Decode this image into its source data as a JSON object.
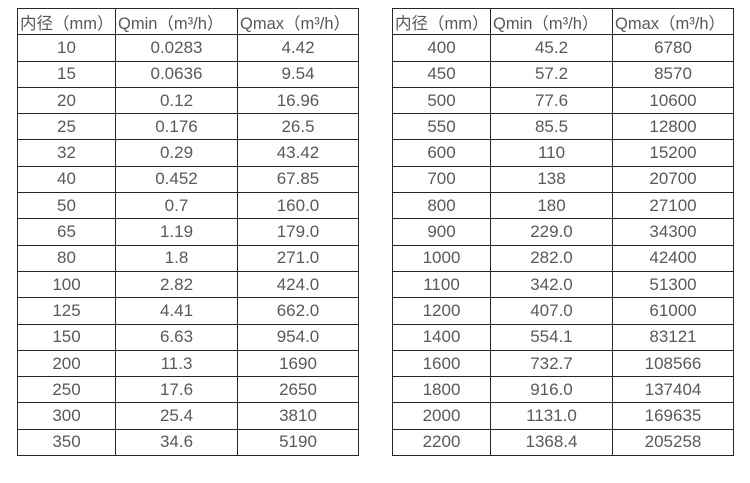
{
  "colors": {
    "background": "#ffffff",
    "border": "#262626",
    "text": "#595959"
  },
  "tables": [
    {
      "name": "small-diameter-flow-table",
      "headers": [
        "内径（mm）",
        "Qmin（m³/h）",
        "Qmax（m³/h）"
      ],
      "rows": [
        [
          "10",
          "0.0283",
          "4.42"
        ],
        [
          "15",
          "0.0636",
          "9.54"
        ],
        [
          "20",
          "0.12",
          "16.96"
        ],
        [
          "25",
          "0.176",
          "26.5"
        ],
        [
          "32",
          "0.29",
          "43.42"
        ],
        [
          "40",
          "0.452",
          "67.85"
        ],
        [
          "50",
          "0.7",
          "160.0"
        ],
        [
          "65",
          "1.19",
          "179.0"
        ],
        [
          "80",
          "1.8",
          "271.0"
        ],
        [
          "100",
          "2.82",
          "424.0"
        ],
        [
          "125",
          "4.41",
          "662.0"
        ],
        [
          "150",
          "6.63",
          "954.0"
        ],
        [
          "200",
          "11.3",
          "1690"
        ],
        [
          "250",
          "17.6",
          "2650"
        ],
        [
          "300",
          "25.4",
          "3810"
        ],
        [
          "350",
          "34.6",
          "5190"
        ]
      ]
    },
    {
      "name": "large-diameter-flow-table",
      "headers": [
        "内径（mm）",
        "Qmin（m³/h）",
        "Qmax（m³/h）"
      ],
      "rows": [
        [
          "400",
          "45.2",
          "6780"
        ],
        [
          "450",
          "57.2",
          "8570"
        ],
        [
          "500",
          "77.6",
          "10600"
        ],
        [
          "550",
          "85.5",
          "12800"
        ],
        [
          "600",
          "110",
          "15200"
        ],
        [
          "700",
          "138",
          "20700"
        ],
        [
          "800",
          "180",
          "27100"
        ],
        [
          "900",
          "229.0",
          "34300"
        ],
        [
          "1000",
          "282.0",
          "42400"
        ],
        [
          "1100",
          "342.0",
          "51300"
        ],
        [
          "1200",
          "407.0",
          "61000"
        ],
        [
          "1400",
          "554.1",
          "83121"
        ],
        [
          "1600",
          "732.7",
          "108566"
        ],
        [
          "1800",
          "916.0",
          "137404"
        ],
        [
          "2000",
          "1131.0",
          "169635"
        ],
        [
          "2200",
          "1368.4",
          "205258"
        ]
      ]
    }
  ]
}
